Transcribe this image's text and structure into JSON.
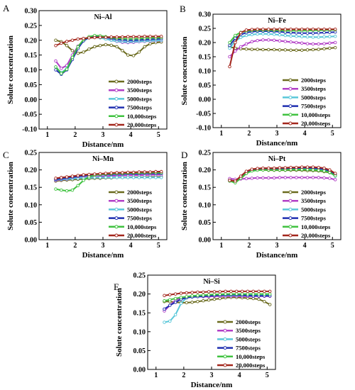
{
  "figure": {
    "legend_entries": [
      "2000steps",
      "3500steps",
      "5000steps",
      "7500steps",
      "10,000steps",
      "20,000steps"
    ],
    "colors": {
      "2000steps": "#6b6b1e",
      "3500steps": "#b23fc7",
      "5000steps": "#59c7d9",
      "7500steps": "#1f2fb0",
      "10,000steps": "#3fc23f",
      "20,000steps": "#a3261c"
    }
  },
  "chart_data": [
    {
      "type": "line",
      "panel": "A",
      "title": "Ni–Al",
      "xlabel": "Distance/nm",
      "ylabel": "Solute concentration",
      "xlim": [
        0.7,
        5.3
      ],
      "ylim": [
        -0.1,
        0.3
      ],
      "xticks": [
        "1",
        "2",
        "3",
        "4",
        "5"
      ],
      "yticks": [
        "-0.10",
        "-0.05",
        "0.00",
        "0.05",
        "0.10",
        "0.15",
        "0.20",
        "0.25",
        "0.30"
      ],
      "legend_position": "lower-right",
      "grid": false,
      "x": [
        1.3,
        1.5,
        1.7,
        1.9,
        2.1,
        2.3,
        2.5,
        2.7,
        2.9,
        3.1,
        3.3,
        3.5,
        3.7,
        3.9,
        4.1,
        4.3,
        4.5,
        4.7,
        4.9,
        5.1
      ],
      "series": [
        {
          "name": "2000steps",
          "values": [
            0.2,
            0.195,
            0.182,
            0.165,
            0.156,
            0.16,
            0.17,
            0.178,
            0.182,
            0.185,
            0.183,
            0.178,
            0.165,
            0.15,
            0.148,
            0.16,
            0.178,
            0.188,
            0.192,
            0.194
          ]
        },
        {
          "name": "3500steps",
          "values": [
            0.13,
            0.105,
            0.115,
            0.15,
            0.18,
            0.2,
            0.21,
            0.212,
            0.21,
            0.205,
            0.2,
            0.196,
            0.193,
            0.192,
            0.193,
            0.195,
            0.196,
            0.197,
            0.198,
            0.199
          ]
        },
        {
          "name": "5000steps",
          "values": [
            0.11,
            0.09,
            0.105,
            0.14,
            0.175,
            0.198,
            0.208,
            0.21,
            0.208,
            0.204,
            0.2,
            0.197,
            0.195,
            0.194,
            0.195,
            0.196,
            0.197,
            0.198,
            0.199,
            0.2
          ]
        },
        {
          "name": "7500steps",
          "values": [
            0.1,
            0.085,
            0.1,
            0.135,
            0.172,
            0.198,
            0.21,
            0.214,
            0.213,
            0.21,
            0.206,
            0.203,
            0.201,
            0.2,
            0.2,
            0.201,
            0.202,
            0.203,
            0.204,
            0.205
          ]
        },
        {
          "name": "10,000steps",
          "values": [
            0.11,
            0.088,
            0.102,
            0.142,
            0.178,
            0.202,
            0.212,
            0.216,
            0.215,
            0.212,
            0.209,
            0.207,
            0.206,
            0.205,
            0.205,
            0.206,
            0.207,
            0.208,
            0.208,
            0.209
          ]
        },
        {
          "name": "20,000steps",
          "values": [
            0.182,
            0.19,
            0.196,
            0.2,
            0.204,
            0.206,
            0.208,
            0.209,
            0.21,
            0.21,
            0.211,
            0.211,
            0.211,
            0.212,
            0.212,
            0.212,
            0.213,
            0.213,
            0.213,
            0.213
          ]
        }
      ]
    },
    {
      "type": "line",
      "panel": "B",
      "title": "Ni–Fe",
      "xlabel": "Distance/nm",
      "ylabel": "Solute concentration",
      "xlim": [
        0.7,
        5.3
      ],
      "ylim": [
        -0.1,
        0.3
      ],
      "xticks": [
        "1",
        "2",
        "3",
        "4",
        "5"
      ],
      "yticks": [
        "-0.10",
        "-0.05",
        "0.00",
        "0.05",
        "0.10",
        "0.15",
        "0.20",
        "0.25",
        "0.30"
      ],
      "legend_position": "lower-right",
      "grid": false,
      "x": [
        1.3,
        1.5,
        1.7,
        1.9,
        2.1,
        2.3,
        2.5,
        2.7,
        2.9,
        3.1,
        3.3,
        3.5,
        3.7,
        3.9,
        4.1,
        4.3,
        4.5,
        4.7,
        4.9,
        5.1
      ],
      "series": [
        {
          "name": "2000steps",
          "values": [
            0.185,
            0.18,
            0.178,
            0.177,
            0.176,
            0.176,
            0.175,
            0.175,
            0.175,
            0.174,
            0.174,
            0.173,
            0.173,
            0.173,
            0.174,
            0.175,
            0.176,
            0.178,
            0.18,
            0.182
          ]
        },
        {
          "name": "3500steps",
          "values": [
            0.15,
            0.17,
            0.185,
            0.195,
            0.203,
            0.207,
            0.209,
            0.209,
            0.208,
            0.206,
            0.204,
            0.202,
            0.2,
            0.198,
            0.196,
            0.195,
            0.195,
            0.196,
            0.198,
            0.2
          ]
        },
        {
          "name": "5000steps",
          "values": [
            0.18,
            0.205,
            0.218,
            0.225,
            0.228,
            0.23,
            0.231,
            0.23,
            0.229,
            0.227,
            0.225,
            0.223,
            0.222,
            0.221,
            0.22,
            0.219,
            0.219,
            0.22,
            0.221,
            0.222
          ]
        },
        {
          "name": "7500steps",
          "values": [
            0.19,
            0.215,
            0.228,
            0.235,
            0.238,
            0.24,
            0.24,
            0.24,
            0.239,
            0.238,
            0.236,
            0.235,
            0.234,
            0.233,
            0.233,
            0.233,
            0.234,
            0.235,
            0.236,
            0.237
          ]
        },
        {
          "name": "10,000steps",
          "values": [
            0.2,
            0.225,
            0.236,
            0.241,
            0.243,
            0.244,
            0.244,
            0.244,
            0.243,
            0.243,
            0.242,
            0.242,
            0.242,
            0.242,
            0.242,
            0.243,
            0.243,
            0.244,
            0.244,
            0.245
          ]
        },
        {
          "name": "20,000steps",
          "values": [
            0.115,
            0.2,
            0.235,
            0.244,
            0.246,
            0.247,
            0.247,
            0.247,
            0.247,
            0.247,
            0.247,
            0.247,
            0.247,
            0.247,
            0.247,
            0.247,
            0.247,
            0.247,
            0.247,
            0.247
          ]
        }
      ]
    },
    {
      "type": "line",
      "panel": "C",
      "title": "Ni–Mn",
      "xlabel": "Distance/nm",
      "ylabel": "Solute concentration",
      "xlim": [
        0.7,
        5.3
      ],
      "ylim": [
        0.0,
        0.25
      ],
      "xticks": [
        "1",
        "2",
        "3",
        "4",
        "5"
      ],
      "yticks": [
        "0.00",
        "0.05",
        "0.10",
        "0.15",
        "0.20",
        "0.25"
      ],
      "legend_position": "lower-right",
      "grid": false,
      "x": [
        1.3,
        1.5,
        1.7,
        1.9,
        2.1,
        2.3,
        2.5,
        2.7,
        2.9,
        3.1,
        3.3,
        3.5,
        3.7,
        3.9,
        4.1,
        4.3,
        4.5,
        4.7,
        4.9,
        5.1
      ],
      "series": [
        {
          "name": "2000steps",
          "values": [
            0.168,
            0.17,
            0.171,
            0.172,
            0.173,
            0.174,
            0.175,
            0.176,
            0.176,
            0.177,
            0.177,
            0.178,
            0.178,
            0.178,
            0.179,
            0.179,
            0.179,
            0.18,
            0.18,
            0.18
          ]
        },
        {
          "name": "3500steps",
          "values": [
            0.17,
            0.172,
            0.173,
            0.175,
            0.176,
            0.178,
            0.179,
            0.18,
            0.181,
            0.182,
            0.183,
            0.183,
            0.184,
            0.184,
            0.185,
            0.185,
            0.185,
            0.186,
            0.186,
            0.186
          ]
        },
        {
          "name": "5000steps",
          "values": [
            0.172,
            0.173,
            0.174,
            0.175,
            0.176,
            0.177,
            0.177,
            0.178,
            0.178,
            0.178,
            0.178,
            0.178,
            0.178,
            0.178,
            0.178,
            0.178,
            0.178,
            0.178,
            0.178,
            0.178
          ]
        },
        {
          "name": "7500steps",
          "values": [
            0.173,
            0.175,
            0.177,
            0.179,
            0.181,
            0.183,
            0.184,
            0.185,
            0.186,
            0.187,
            0.187,
            0.188,
            0.188,
            0.189,
            0.189,
            0.189,
            0.19,
            0.19,
            0.19,
            0.19
          ]
        },
        {
          "name": "10,000steps",
          "values": [
            0.145,
            0.142,
            0.14,
            0.142,
            0.155,
            0.17,
            0.18,
            0.185,
            0.187,
            0.188,
            0.189,
            0.19,
            0.19,
            0.191,
            0.191,
            0.191,
            0.192,
            0.192,
            0.192,
            0.192
          ]
        },
        {
          "name": "20,000steps",
          "values": [
            0.176,
            0.178,
            0.18,
            0.182,
            0.184,
            0.186,
            0.187,
            0.188,
            0.189,
            0.19,
            0.191,
            0.192,
            0.192,
            0.193,
            0.193,
            0.194,
            0.194,
            0.194,
            0.195,
            0.195
          ]
        }
      ]
    },
    {
      "type": "line",
      "panel": "D",
      "title": "Ni–Pt",
      "xlabel": "Distance/nm",
      "ylabel": "Solute concentration",
      "xlim": [
        0.7,
        5.3
      ],
      "ylim": [
        0.0,
        0.25
      ],
      "xticks": [
        "1",
        "2",
        "3",
        "4",
        "5"
      ],
      "yticks": [
        "0.00",
        "0.05",
        "0.10",
        "0.15",
        "0.20",
        "0.25"
      ],
      "legend_position": "lower-right",
      "grid": false,
      "x": [
        1.3,
        1.5,
        1.7,
        1.9,
        2.1,
        2.3,
        2.5,
        2.7,
        2.9,
        3.1,
        3.3,
        3.5,
        3.7,
        3.9,
        4.1,
        4.3,
        4.5,
        4.7,
        4.9,
        5.1
      ],
      "series": [
        {
          "name": "2000steps",
          "values": [
            0.172,
            0.165,
            0.175,
            0.19,
            0.198,
            0.2,
            0.2,
            0.199,
            0.199,
            0.199,
            0.199,
            0.199,
            0.199,
            0.199,
            0.198,
            0.198,
            0.197,
            0.195,
            0.192,
            0.185
          ]
        },
        {
          "name": "3500steps",
          "values": [
            0.175,
            0.173,
            0.174,
            0.175,
            0.176,
            0.177,
            0.177,
            0.177,
            0.177,
            0.178,
            0.178,
            0.178,
            0.178,
            0.178,
            0.178,
            0.178,
            0.178,
            0.177,
            0.176,
            0.172
          ]
        },
        {
          "name": "5000steps",
          "values": [
            0.168,
            0.166,
            0.178,
            0.192,
            0.199,
            0.201,
            0.202,
            0.202,
            0.202,
            0.202,
            0.202,
            0.203,
            0.203,
            0.203,
            0.203,
            0.202,
            0.201,
            0.198,
            0.193,
            0.182
          ]
        },
        {
          "name": "7500steps",
          "values": [
            0.17,
            0.168,
            0.18,
            0.193,
            0.2,
            0.202,
            0.203,
            0.203,
            0.203,
            0.204,
            0.204,
            0.205,
            0.205,
            0.206,
            0.206,
            0.205,
            0.204,
            0.202,
            0.197,
            0.187
          ]
        },
        {
          "name": "10,000steps",
          "values": [
            0.168,
            0.163,
            0.176,
            0.19,
            0.197,
            0.199,
            0.2,
            0.2,
            0.2,
            0.2,
            0.2,
            0.201,
            0.201,
            0.201,
            0.201,
            0.2,
            0.199,
            0.197,
            0.193,
            0.183
          ]
        },
        {
          "name": "20,000steps",
          "values": [
            0.17,
            0.168,
            0.182,
            0.196,
            0.202,
            0.204,
            0.205,
            0.205,
            0.205,
            0.206,
            0.206,
            0.207,
            0.207,
            0.208,
            0.208,
            0.208,
            0.207,
            0.205,
            0.2,
            0.19
          ]
        }
      ]
    },
    {
      "type": "line",
      "panel": "E",
      "title": "Ni–Si",
      "xlabel": "Distance/nm",
      "ylabel": "Solute concentration",
      "xlim": [
        0.7,
        5.3
      ],
      "ylim": [
        0.0,
        0.25
      ],
      "xticks": [
        "1",
        "2",
        "3",
        "4",
        "5"
      ],
      "yticks": [
        "0.00",
        "0.05",
        "0.10",
        "0.15",
        "0.20",
        "0.25"
      ],
      "legend_position": "lower-right",
      "grid": false,
      "x": [
        1.3,
        1.5,
        1.7,
        1.9,
        2.1,
        2.3,
        2.5,
        2.7,
        2.9,
        3.1,
        3.3,
        3.5,
        3.7,
        3.9,
        4.1,
        4.3,
        4.5,
        4.7,
        4.9,
        5.1
      ],
      "series": [
        {
          "name": "2000steps",
          "values": [
            0.18,
            0.18,
            0.178,
            0.177,
            0.177,
            0.178,
            0.18,
            0.182,
            0.184,
            0.186,
            0.188,
            0.19,
            0.191,
            0.191,
            0.19,
            0.189,
            0.188,
            0.186,
            0.18,
            0.172
          ]
        },
        {
          "name": "3500steps",
          "values": [
            0.155,
            0.17,
            0.183,
            0.19,
            0.192,
            0.193,
            0.193,
            0.193,
            0.193,
            0.194,
            0.194,
            0.194,
            0.194,
            0.194,
            0.194,
            0.194,
            0.194,
            0.194,
            0.194,
            0.194
          ]
        },
        {
          "name": "5000steps",
          "values": [
            0.125,
            0.128,
            0.145,
            0.175,
            0.19,
            0.194,
            0.196,
            0.197,
            0.197,
            0.197,
            0.197,
            0.197,
            0.197,
            0.197,
            0.197,
            0.197,
            0.197,
            0.197,
            0.197,
            0.197
          ]
        },
        {
          "name": "7500steps",
          "values": [
            0.16,
            0.17,
            0.178,
            0.186,
            0.19,
            0.192,
            0.193,
            0.194,
            0.195,
            0.196,
            0.197,
            0.198,
            0.198,
            0.198,
            0.197,
            0.196,
            0.195,
            0.195,
            0.195,
            0.195
          ]
        },
        {
          "name": "10,000steps",
          "values": [
            0.182,
            0.185,
            0.188,
            0.191,
            0.193,
            0.195,
            0.196,
            0.197,
            0.198,
            0.199,
            0.199,
            0.2,
            0.2,
            0.2,
            0.2,
            0.2,
            0.2,
            0.2,
            0.2,
            0.2
          ]
        },
        {
          "name": "20,000steps",
          "values": [
            0.196,
            0.198,
            0.2,
            0.202,
            0.203,
            0.204,
            0.205,
            0.205,
            0.206,
            0.206,
            0.206,
            0.207,
            0.207,
            0.207,
            0.207,
            0.207,
            0.207,
            0.207,
            0.207,
            0.207
          ]
        }
      ]
    }
  ]
}
